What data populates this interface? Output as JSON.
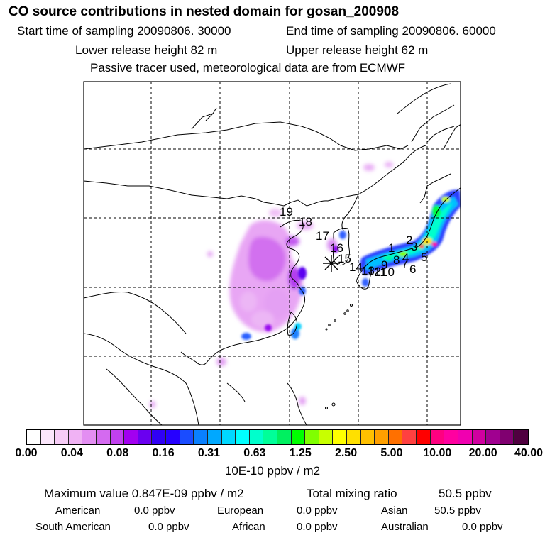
{
  "header": {
    "title": "CO  source contributions in nested domain for gosan_200908",
    "start_label": "Start time of sampling 20090806. 30000",
    "end_label": "End time of sampling 20090806. 60000",
    "lower_label": "Lower release height   82 m",
    "upper_label": "Upper release height   62 m",
    "tracer_note": "Passive tracer used, meteorological data are from ECMWF"
  },
  "map": {
    "station_marker": "asterisk-icon",
    "station_labels": [
      "1",
      "2",
      "3",
      "4",
      "5",
      "6",
      "7",
      "8",
      "9",
      "10",
      "11",
      "12",
      "13",
      "14",
      "15",
      "16",
      "17",
      "18",
      "19"
    ]
  },
  "colorbar": {
    "colors": [
      "#ffffff",
      "#fbe6fb",
      "#f6ccf6",
      "#f0b2f4",
      "#e38ef2",
      "#d46af0",
      "#c140ef",
      "#a200f0",
      "#6a00f0",
      "#3000f5",
      "#2600ff",
      "#1a4cff",
      "#0a80ff",
      "#00a8ff",
      "#00d8ff",
      "#00ffff",
      "#00ffcc",
      "#00ff99",
      "#00f060",
      "#00ff00",
      "#80ff00",
      "#c8ff00",
      "#ffff00",
      "#ffe000",
      "#ffc000",
      "#ffa000",
      "#ff7000",
      "#ff4040",
      "#ff0000",
      "#ff0080",
      "#ff00a0",
      "#f000b0",
      "#d000a0",
      "#a00090",
      "#800070",
      "#500040"
    ],
    "tick_labels": [
      "0.00",
      "0.04",
      "0.08",
      "0.16",
      "0.31",
      "0.63",
      "1.25",
      "2.50",
      "5.00",
      "10.00",
      "20.00",
      "40.00"
    ],
    "unit": "10E-10 ppbv / m2"
  },
  "summary": {
    "max_value": "Maximum value  0.847E-09 ppbv / m2",
    "total_label": "Total mixing ratio",
    "total_value": "50.5 ppbv"
  },
  "regions": [
    {
      "name": "American",
      "value": "0.0 ppbv"
    },
    {
      "name": "European",
      "value": "0.0 ppbv"
    },
    {
      "name": "Asian",
      "value": "50.5 ppbv"
    },
    {
      "name": "South American",
      "value": "0.0 ppbv"
    },
    {
      "name": "African",
      "value": "0.0 ppbv"
    },
    {
      "name": "Australian",
      "value": "0.0 ppbv"
    }
  ]
}
